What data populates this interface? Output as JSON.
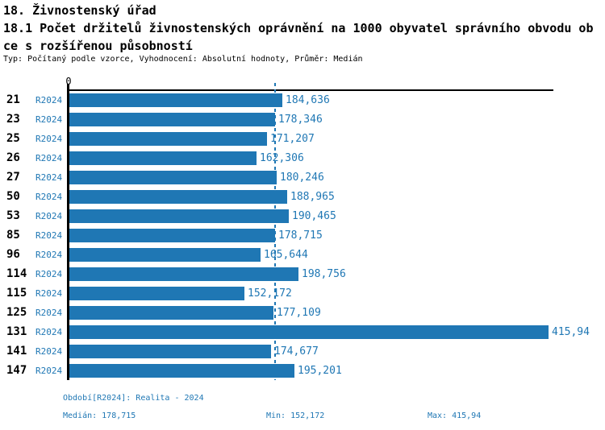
{
  "header": {
    "title": "18. Živnostenský úřad",
    "subtitle_line1": "18.1 Počet držitelů živnostenských oprávnění na 1000 obyvatel správního obvodu ob",
    "subtitle_line2": "ce s rozšířenou působností",
    "meta": "Typ: Počítaný podle vzorce, Vyhodnocení: Absolutní hodnoty, Průměr: Medián"
  },
  "colors": {
    "bar": "#1f77b4",
    "accent_text": "#1f77b4",
    "axis": "#000000",
    "text": "#000000",
    "background": "#ffffff"
  },
  "chart_data": {
    "type": "bar",
    "orientation": "horizontal",
    "title": "18.1 Počet držitelů živnostenských oprávnění na 1000 obyvatel správního obvodu obce s rozšířenou působností",
    "xlabel": "",
    "ylabel": "",
    "xlim": [
      0,
      420
    ],
    "axis_zero_label": "0",
    "grid": false,
    "series_label": "R2024",
    "median_value": 178.715,
    "median_line": true,
    "rows": [
      {
        "id": "21",
        "period": "R2024",
        "value": 184.636,
        "label": "184,636"
      },
      {
        "id": "23",
        "period": "R2024",
        "value": 178.346,
        "label": "178,346"
      },
      {
        "id": "25",
        "period": "R2024",
        "value": 171.207,
        "label": "171,207"
      },
      {
        "id": "26",
        "period": "R2024",
        "value": 162.306,
        "label": "162,306"
      },
      {
        "id": "27",
        "period": "R2024",
        "value": 180.246,
        "label": "180,246"
      },
      {
        "id": "50",
        "period": "R2024",
        "value": 188.965,
        "label": "188,965"
      },
      {
        "id": "53",
        "period": "R2024",
        "value": 190.465,
        "label": "190,465"
      },
      {
        "id": "85",
        "period": "R2024",
        "value": 178.715,
        "label": "178,715"
      },
      {
        "id": "96",
        "period": "R2024",
        "value": 165.644,
        "label": "165,644"
      },
      {
        "id": "114",
        "period": "R2024",
        "value": 198.756,
        "label": "198,756"
      },
      {
        "id": "115",
        "period": "R2024",
        "value": 152.172,
        "label": "152,172"
      },
      {
        "id": "125",
        "period": "R2024",
        "value": 177.109,
        "label": "177,109"
      },
      {
        "id": "131",
        "period": "R2024",
        "value": 415.94,
        "label": "415,94"
      },
      {
        "id": "141",
        "period": "R2024",
        "value": 174.677,
        "label": "174,677"
      },
      {
        "id": "147",
        "period": "R2024",
        "value": 195.201,
        "label": "195,201"
      }
    ],
    "legend": {
      "period_line": "Období[R2024]: Realita - 2024",
      "median": "Medián: 178,715",
      "min": "Min: 152,172",
      "max": "Max: 415,94"
    }
  }
}
